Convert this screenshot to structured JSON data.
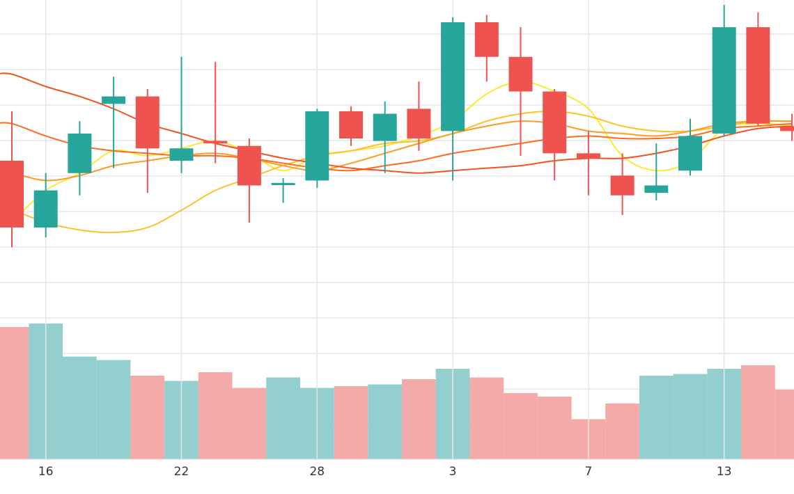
{
  "chart_data": {
    "type": "candlestick",
    "x_tick_labels": [
      "16",
      "22",
      "28",
      "3",
      "7",
      "13"
    ],
    "y_range": [
      37.5,
      50.5
    ],
    "volume_range": [
      0,
      10
    ],
    "grid": true,
    "colors": {
      "up": "#26a69a",
      "down": "#ef5350",
      "volume_up": "#93cfce",
      "volume_down": "#f4aaa8",
      "grid": "#e6e6e6",
      "axis": "#dddddd",
      "ma_lines": [
        "#ffe930",
        "#ffc02a",
        "#ff9a22",
        "#ff6b1a",
        "#f4511e"
      ]
    },
    "candles": [
      {
        "open": 44.0,
        "high": 46.0,
        "low": 40.5,
        "close": 41.3
      },
      {
        "open": 41.3,
        "high": 43.5,
        "low": 40.9,
        "close": 42.8
      },
      {
        "open": 43.5,
        "high": 45.6,
        "low": 42.6,
        "close": 45.1
      },
      {
        "open": 46.3,
        "high": 47.4,
        "low": 43.7,
        "close": 46.6
      },
      {
        "open": 46.6,
        "high": 46.9,
        "low": 42.7,
        "close": 44.5
      },
      {
        "open": 44.0,
        "high": 48.2,
        "low": 43.5,
        "close": 44.5
      },
      {
        "open": 44.8,
        "high": 48.0,
        "low": 43.9,
        "close": 44.7
      },
      {
        "open": 44.6,
        "high": 44.9,
        "low": 41.5,
        "close": 43.0
      },
      {
        "open": 43.1,
        "high": 43.3,
        "low": 42.3,
        "close": 43.1
      },
      {
        "open": 43.2,
        "high": 46.1,
        "low": 42.9,
        "close": 46.0
      },
      {
        "open": 46.0,
        "high": 46.2,
        "low": 44.6,
        "close": 44.9
      },
      {
        "open": 44.8,
        "high": 46.4,
        "low": 43.5,
        "close": 45.9
      },
      {
        "open": 46.1,
        "high": 47.2,
        "low": 44.4,
        "close": 44.9
      },
      {
        "open": 45.2,
        "high": 49.8,
        "low": 43.2,
        "close": 49.6
      },
      {
        "open": 49.6,
        "high": 49.9,
        "low": 47.2,
        "close": 48.2
      },
      {
        "open": 48.2,
        "high": 49.4,
        "low": 44.2,
        "close": 46.8
      },
      {
        "open": 46.8,
        "high": 46.9,
        "low": 43.2,
        "close": 44.3
      },
      {
        "open": 44.3,
        "high": 45.2,
        "low": 42.6,
        "close": 44.1
      },
      {
        "open": 43.4,
        "high": 44.3,
        "low": 41.8,
        "close": 42.6
      },
      {
        "open": 42.7,
        "high": 44.7,
        "low": 42.4,
        "close": 43.0
      },
      {
        "open": 43.6,
        "high": 45.7,
        "low": 43.4,
        "close": 45.0
      },
      {
        "open": 45.1,
        "high": 50.3,
        "low": 45.0,
        "close": 49.4
      },
      {
        "open": 49.4,
        "high": 50.0,
        "low": 45.4,
        "close": 45.5
      },
      {
        "open": 45.4,
        "high": 45.9,
        "low": 44.8,
        "close": 45.2
      }
    ],
    "volume": [
      7.6,
      7.8,
      5.9,
      5.7,
      4.8,
      4.5,
      5.0,
      4.1,
      4.7,
      4.1,
      4.2,
      4.3,
      4.6,
      5.2,
      4.7,
      3.8,
      3.6,
      2.3,
      3.2,
      4.8,
      4.9,
      5.2,
      5.4,
      4.0
    ],
    "moving_averages": [
      {
        "values": [
          41.6,
          42.8,
          43.5,
          44.4,
          44.2,
          44.5,
          44.8,
          44.3,
          43.6,
          44.2,
          44.4,
          44.6,
          45.0,
          45.6,
          46.7,
          47.2,
          46.8,
          46.1,
          44.2,
          43.6,
          44.0,
          45.3,
          45.5,
          45.4
        ]
      },
      {
        "values": [
          42.0,
          41.5,
          41.2,
          41.1,
          41.3,
          42.0,
          42.8,
          43.3,
          43.8,
          44.2,
          44.4,
          44.7,
          44.8,
          45.1,
          45.6,
          45.9,
          46.0,
          45.8,
          45.4,
          45.2,
          45.2,
          45.4,
          45.6,
          45.6
        ]
      },
      {
        "values": [
          43.5,
          43.2,
          43.4,
          43.8,
          44.0,
          44.2,
          44.3,
          44.1,
          43.8,
          43.6,
          43.9,
          44.3,
          44.7,
          45.1,
          45.4,
          45.6,
          45.5,
          45.2,
          45.1,
          45.0,
          45.2,
          45.5,
          45.6,
          45.6
        ]
      },
      {
        "values": [
          45.5,
          45.0,
          44.6,
          44.4,
          44.3,
          44.2,
          44.2,
          44.1,
          43.9,
          43.7,
          43.6,
          43.8,
          44.0,
          44.3,
          44.5,
          44.7,
          44.9,
          45.0,
          44.9,
          44.9,
          45.0,
          45.3,
          45.4,
          45.5
        ]
      },
      {
        "values": [
          47.5,
          47.0,
          46.6,
          46.1,
          45.5,
          45.1,
          44.7,
          44.4,
          44.1,
          43.9,
          43.7,
          43.6,
          43.5,
          43.6,
          43.7,
          43.8,
          44.0,
          44.1,
          44.1,
          44.3,
          44.6,
          45.0,
          45.3,
          45.4
        ]
      }
    ]
  }
}
